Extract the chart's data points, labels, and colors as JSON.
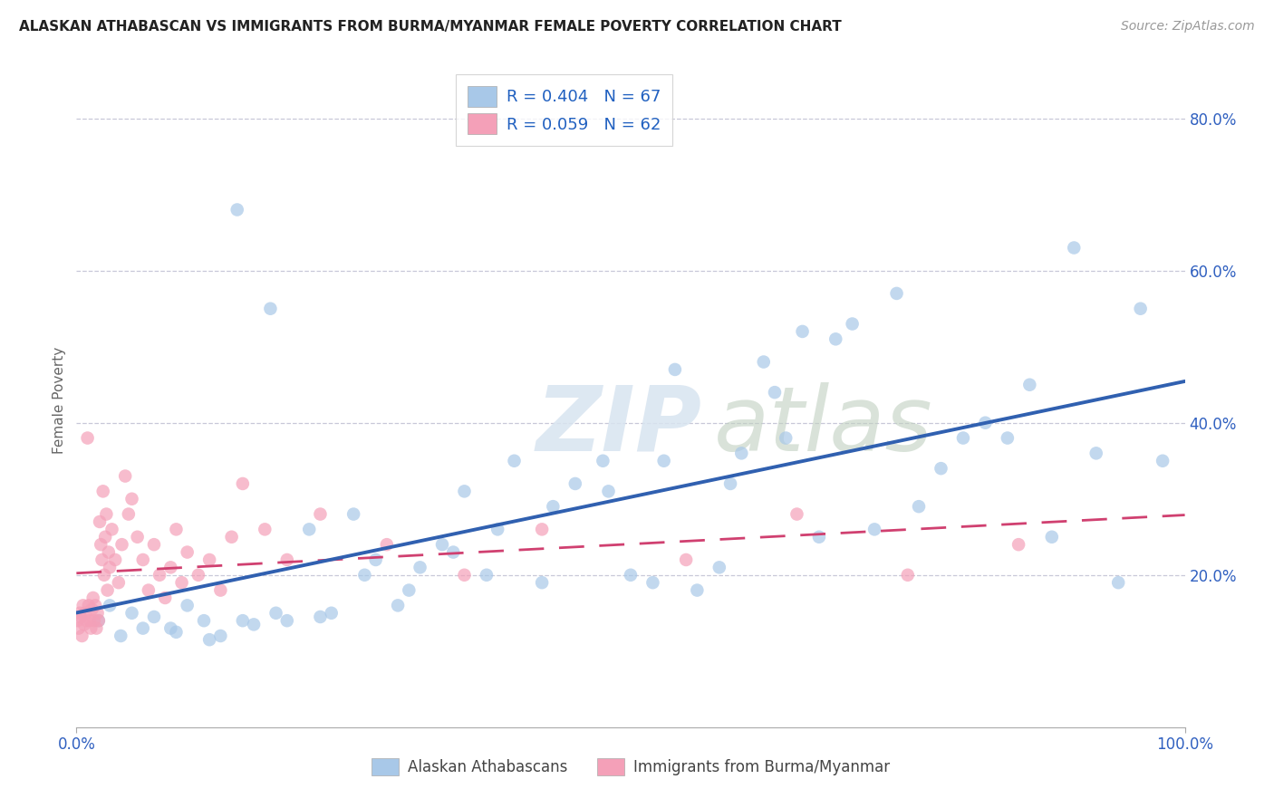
{
  "title": "ALASKAN ATHABASCAN VS IMMIGRANTS FROM BURMA/MYANMAR FEMALE POVERTY CORRELATION CHART",
  "source": "Source: ZipAtlas.com",
  "ylabel": "Female Poverty",
  "watermark_zip": "ZIP",
  "watermark_atlas": "atlas",
  "legend_r1": "R = 0.404",
  "legend_n1": "N = 67",
  "legend_r2": "R = 0.059",
  "legend_n2": "N = 62",
  "legend_label1": "Alaskan Athabascans",
  "legend_label2": "Immigrants from Burma/Myanmar",
  "blue_color": "#a8c8e8",
  "pink_color": "#f4a0b8",
  "blue_line_color": "#3060b0",
  "pink_line_color": "#d04070",
  "legend_r_color": "#2060c0",
  "grid_color": "#c8c8d8",
  "blue_x": [
    2.0,
    3.0,
    5.0,
    7.0,
    8.5,
    10.0,
    11.5,
    13.0,
    14.5,
    16.0,
    17.5,
    19.0,
    21.0,
    23.0,
    25.0,
    27.0,
    29.0,
    31.0,
    33.0,
    35.0,
    37.0,
    39.5,
    42.0,
    45.0,
    47.5,
    50.0,
    52.0,
    54.0,
    56.0,
    58.0,
    60.0,
    62.0,
    64.0,
    65.5,
    67.0,
    68.5,
    70.0,
    72.0,
    74.0,
    76.0,
    78.0,
    80.0,
    82.0,
    84.0,
    86.0,
    88.0,
    90.0,
    92.0,
    94.0,
    96.0,
    98.0,
    4.0,
    6.0,
    9.0,
    12.0,
    15.0,
    18.0,
    22.0,
    26.0,
    30.0,
    34.0,
    38.0,
    43.0,
    48.0,
    53.0,
    59.0,
    63.0
  ],
  "blue_y": [
    14.0,
    16.0,
    15.0,
    14.5,
    13.0,
    16.0,
    14.0,
    12.0,
    68.0,
    13.5,
    55.0,
    14.0,
    26.0,
    15.0,
    28.0,
    22.0,
    16.0,
    21.0,
    24.0,
    31.0,
    20.0,
    35.0,
    19.0,
    32.0,
    35.0,
    20.0,
    19.0,
    47.0,
    18.0,
    21.0,
    36.0,
    48.0,
    38.0,
    52.0,
    25.0,
    51.0,
    53.0,
    26.0,
    57.0,
    29.0,
    34.0,
    38.0,
    40.0,
    38.0,
    45.0,
    25.0,
    63.0,
    36.0,
    19.0,
    55.0,
    35.0,
    12.0,
    13.0,
    12.5,
    11.5,
    14.0,
    15.0,
    14.5,
    20.0,
    18.0,
    23.0,
    26.0,
    29.0,
    31.0,
    35.0,
    32.0,
    44.0
  ],
  "pink_x": [
    0.1,
    0.2,
    0.3,
    0.4,
    0.5,
    0.6,
    0.7,
    0.8,
    0.9,
    1.0,
    1.1,
    1.2,
    1.3,
    1.4,
    1.5,
    1.6,
    1.7,
    1.8,
    1.9,
    2.0,
    2.1,
    2.2,
    2.3,
    2.4,
    2.5,
    2.6,
    2.7,
    2.8,
    2.9,
    3.0,
    3.2,
    3.5,
    3.8,
    4.1,
    4.4,
    4.7,
    5.0,
    5.5,
    6.0,
    6.5,
    7.0,
    7.5,
    8.0,
    8.5,
    9.0,
    9.5,
    10.0,
    11.0,
    12.0,
    13.0,
    14.0,
    15.0,
    17.0,
    19.0,
    22.0,
    28.0,
    35.0,
    42.0,
    55.0,
    65.0,
    75.0,
    85.0
  ],
  "pink_y": [
    14.0,
    13.0,
    15.0,
    14.5,
    12.0,
    16.0,
    13.5,
    15.0,
    14.0,
    38.0,
    16.0,
    14.0,
    13.0,
    15.5,
    17.0,
    14.0,
    16.0,
    13.0,
    15.0,
    14.0,
    27.0,
    24.0,
    22.0,
    31.0,
    20.0,
    25.0,
    28.0,
    18.0,
    23.0,
    21.0,
    26.0,
    22.0,
    19.0,
    24.0,
    33.0,
    28.0,
    30.0,
    25.0,
    22.0,
    18.0,
    24.0,
    20.0,
    17.0,
    21.0,
    26.0,
    19.0,
    23.0,
    20.0,
    22.0,
    18.0,
    25.0,
    32.0,
    26.0,
    22.0,
    28.0,
    24.0,
    20.0,
    26.0,
    22.0,
    28.0,
    20.0,
    24.0
  ],
  "xlim": [
    0,
    100
  ],
  "ylim": [
    0,
    0.86
  ],
  "yticks": [
    0.2,
    0.4,
    0.6,
    0.8
  ],
  "ytick_labels": [
    "20.0%",
    "40.0%",
    "60.0%",
    "80.0%"
  ],
  "xtick_labels": [
    "0.0%",
    "100.0%"
  ],
  "title_fontsize": 11,
  "source_fontsize": 10,
  "tick_color": "#3060c0",
  "axis_label_color": "#666666"
}
